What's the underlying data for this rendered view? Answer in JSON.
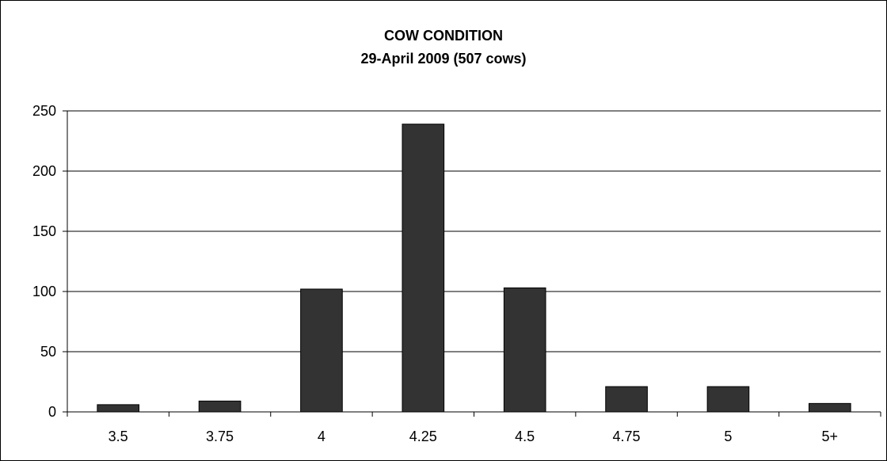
{
  "chart_data": {
    "type": "bar",
    "title": "COW CONDITION",
    "subtitle": "29-April 2009 (507 cows)",
    "categories": [
      "3.5",
      "3.75",
      "4",
      "4.25",
      "4.5",
      "4.75",
      "5",
      "5+"
    ],
    "values": [
      6,
      9,
      102,
      239,
      103,
      21,
      21,
      7
    ],
    "xlabel": "",
    "ylabel": "",
    "ylim": [
      0,
      250
    ],
    "yticks": [
      0,
      50,
      100,
      150,
      200,
      250
    ],
    "grid": true,
    "bar_color": "#333333"
  }
}
